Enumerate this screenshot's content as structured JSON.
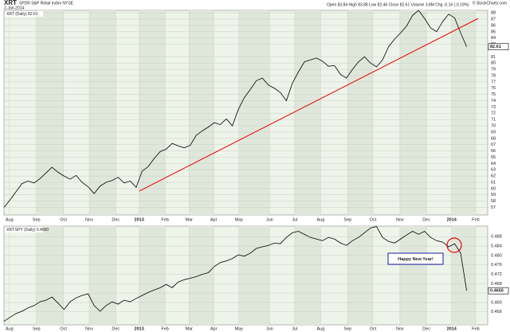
{
  "chart_data": [
    {
      "type": "line",
      "title": "XRT",
      "subtitle": "SPDR S&P Retail Index  NYSE",
      "date": "2-Jan-2014",
      "quote": "Open 83.84  High 83.88  Low 82.46  Close 82.61  Volume 3.8M  Chg -0.16 (-0.19%)",
      "credit": "© StockCharts.com",
      "legend": "XRT (Daily) 82.61",
      "last_label": "82.61",
      "color": "#000000",
      "values": [
        57.0,
        58.2,
        59.5,
        60.8,
        61.2,
        60.9,
        61.6,
        62.5,
        63.4,
        62.6,
        62.0,
        61.5,
        62.1,
        61.0,
        60.3,
        59.2,
        60.4,
        61.0,
        61.3,
        61.8,
        60.9,
        61.2,
        60.2,
        62.8,
        63.5,
        64.8,
        65.9,
        66.3,
        67.2,
        66.8,
        66.5,
        66.9,
        68.5,
        69.2,
        69.8,
        70.5,
        70.2,
        71.1,
        70.0,
        72.6,
        74.5,
        75.8,
        77.2,
        77.6,
        76.5,
        76.0,
        75.3,
        74.0,
        76.8,
        78.6,
        80.2,
        80.5,
        80.8,
        80.3,
        79.5,
        79.6,
        78.2,
        77.6,
        79.0,
        80.2,
        81.0,
        80.0,
        79.4,
        80.5,
        82.6,
        83.8,
        84.8,
        85.9,
        87.6,
        88.4,
        87.1,
        85.6,
        85.0,
        86.6,
        87.8,
        87.2,
        84.8,
        82.6
      ],
      "trendline": {
        "color": "#e8000a",
        "x": [
          22.5,
          78.9
        ],
        "values": [
          59.6,
          87.1
        ]
      },
      "xlim": [
        0,
        80.5
      ],
      "xticks": [
        {
          "value": 0.9,
          "label": "Aug"
        },
        {
          "value": 5.4,
          "label": "Sep"
        },
        {
          "value": 9.9,
          "label": "Oct"
        },
        {
          "value": 14.2,
          "label": "Nov"
        },
        {
          "value": 18.6,
          "label": "Dec"
        },
        {
          "value": 22.5,
          "label": "2013"
        },
        {
          "value": 26.8,
          "label": "Feb"
        },
        {
          "value": 30.8,
          "label": "Mar"
        },
        {
          "value": 34.9,
          "label": "Apr"
        },
        {
          "value": 39.1,
          "label": "May"
        },
        {
          "value": 44.2,
          "label": "Jun"
        },
        {
          "value": 48.4,
          "label": "Jul"
        },
        {
          "value": 52.7,
          "label": "Aug"
        },
        {
          "value": 57.2,
          "label": "Sep"
        },
        {
          "value": 61.4,
          "label": "Oct"
        },
        {
          "value": 65.9,
          "label": "Nov"
        },
        {
          "value": 70.3,
          "label": "Dec"
        },
        {
          "value": 74.5,
          "label": "2014"
        },
        {
          "value": 78.5,
          "label": "Feb"
        }
      ],
      "ylim": [
        55.8,
        88.4
      ],
      "yticks": [
        57,
        58,
        59,
        60,
        61,
        62,
        63,
        64,
        65,
        66,
        67,
        68,
        69,
        70,
        71,
        72,
        73,
        74,
        75,
        76,
        77,
        78,
        79,
        80,
        81,
        83,
        84,
        85,
        86,
        87,
        88
      ],
      "grid": true
    },
    {
      "type": "line",
      "legend": "XRT:SPY (Daily) 0.4650",
      "last_label": "0.4650",
      "annotation": "Happy New Year!",
      "color": "#000000",
      "values": [
        0.452,
        0.4537,
        0.4553,
        0.4563,
        0.4577,
        0.4587,
        0.4603,
        0.461,
        0.4623,
        0.4597,
        0.457,
        0.4603,
        0.462,
        0.463,
        0.4637,
        0.4587,
        0.4563,
        0.4587,
        0.4603,
        0.4593,
        0.461,
        0.4603,
        0.4617,
        0.463,
        0.4643,
        0.4653,
        0.4663,
        0.4677,
        0.4663,
        0.4687,
        0.4697,
        0.4703,
        0.471,
        0.472,
        0.4727,
        0.4753,
        0.477,
        0.4777,
        0.4787,
        0.4803,
        0.4797,
        0.481,
        0.483,
        0.4837,
        0.4843,
        0.4853,
        0.485,
        0.4877,
        0.4897,
        0.4903,
        0.489,
        0.4877,
        0.487,
        0.4863,
        0.4877,
        0.487,
        0.4853,
        0.4843,
        0.4863,
        0.4877,
        0.4897,
        0.4917,
        0.4923,
        0.4877,
        0.486,
        0.4853,
        0.487,
        0.4887,
        0.4903,
        0.489,
        0.4903,
        0.4877,
        0.4863,
        0.4857,
        0.4837,
        0.485,
        0.481,
        0.465
      ],
      "xlim": [
        0,
        80.5
      ],
      "xticks": [
        {
          "value": 0.9,
          "label": "Aug"
        },
        {
          "value": 5.4,
          "label": "Sep"
        },
        {
          "value": 9.9,
          "label": "Oct"
        },
        {
          "value": 14.2,
          "label": "Nov"
        },
        {
          "value": 18.6,
          "label": "Dec"
        },
        {
          "value": 22.5,
          "label": "2013"
        },
        {
          "value": 26.8,
          "label": "Feb"
        },
        {
          "value": 30.8,
          "label": "Mar"
        },
        {
          "value": 34.9,
          "label": "Apr"
        },
        {
          "value": 39.1,
          "label": "May"
        },
        {
          "value": 44.2,
          "label": "Jun"
        },
        {
          "value": 48.4,
          "label": "Jul"
        },
        {
          "value": 52.7,
          "label": "Aug"
        },
        {
          "value": 57.2,
          "label": "Sep"
        },
        {
          "value": 61.4,
          "label": "Oct"
        },
        {
          "value": 65.9,
          "label": "Nov"
        },
        {
          "value": 70.3,
          "label": "Dec"
        },
        {
          "value": 74.5,
          "label": "2014"
        },
        {
          "value": 78.5,
          "label": "Feb"
        }
      ],
      "ylim": [
        0.4505,
        0.4925
      ],
      "yticks": [
        {
          "value": 0.456,
          "label": "0.456"
        },
        {
          "value": 0.46,
          "label": "0.460"
        },
        {
          "value": 0.464,
          "label": "0.464"
        },
        {
          "value": 0.468,
          "label": "0.468"
        },
        {
          "value": 0.472,
          "label": "0.472"
        },
        {
          "value": 0.476,
          "label": "0.476"
        },
        {
          "value": 0.48,
          "label": "0.480"
        },
        {
          "value": 0.484,
          "label": "0.484"
        },
        {
          "value": 0.488,
          "label": "0.488"
        }
      ],
      "grid": true
    }
  ]
}
